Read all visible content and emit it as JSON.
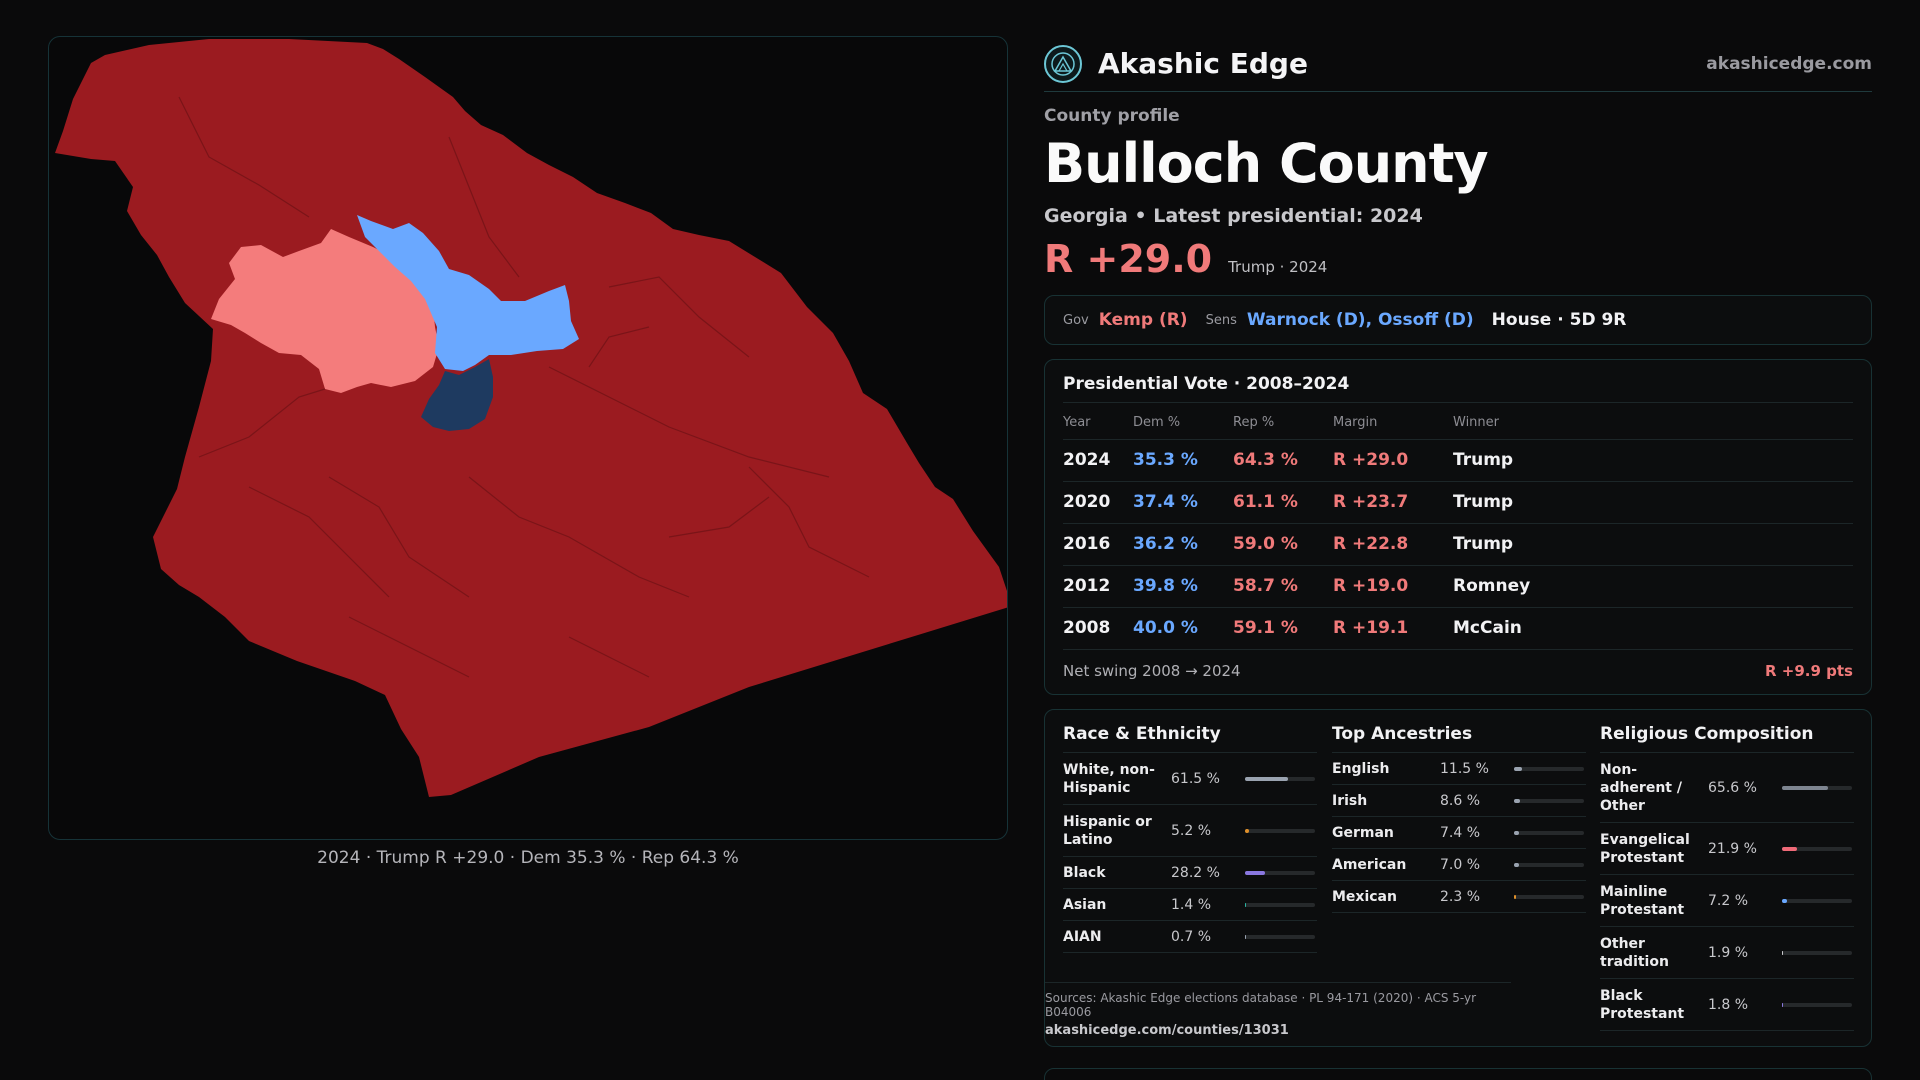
{
  "map": {
    "caption": "2024 · Trump R +29.0 · Dem 35.3 % · Rep 64.3 %",
    "colors": {
      "safe_r": "#9b1b20",
      "lean_r": "#f47c7c",
      "lean_d": "#6aa8ff",
      "safe_d": "#1e3a60"
    }
  },
  "brand": {
    "name": "Akashic Edge",
    "url": "akashicedge.com",
    "logo_icon": "mountain-compass-icon"
  },
  "profile": {
    "label": "County profile",
    "title": "Bulloch County",
    "subtitle": "Georgia • Latest presidential: 2024",
    "margin": "R +29.0",
    "margin_note": "Trump · 2024"
  },
  "officials": {
    "gov_label": "Gov",
    "gov_value": "Kemp (R)",
    "sens_label": "Sens",
    "sens_value": "Warnock (D), Ossoff (D)",
    "house_value": "House · 5D 9R"
  },
  "presidential": {
    "title": "Presidential Vote · 2008–2024",
    "headers": [
      "Year",
      "Dem %",
      "Rep %",
      "Margin",
      "Winner"
    ],
    "rows": [
      {
        "year": "2024",
        "dem": "35.3 %",
        "rep": "64.3 %",
        "margin": "R +29.0",
        "winner": "Trump"
      },
      {
        "year": "2020",
        "dem": "37.4 %",
        "rep": "61.1 %",
        "margin": "R +23.7",
        "winner": "Trump"
      },
      {
        "year": "2016",
        "dem": "36.2 %",
        "rep": "59.0 %",
        "margin": "R +22.8",
        "winner": "Trump"
      },
      {
        "year": "2012",
        "dem": "39.8 %",
        "rep": "58.7 %",
        "margin": "R +19.0",
        "winner": "Romney"
      },
      {
        "year": "2008",
        "dem": "40.0 %",
        "rep": "59.1 %",
        "margin": "R +19.1",
        "winner": "McCain"
      }
    ],
    "swing_label": "Net swing 2008 → 2024",
    "swing_value": "R +9.9 pts"
  },
  "race": {
    "title": "Race & Ethnicity",
    "rows": [
      {
        "name": "White, non-Hispanic",
        "pct": "61.5 %",
        "value": 61.5,
        "color": "#9aa3b0"
      },
      {
        "name": "Hispanic or Latino",
        "pct": "5.2 %",
        "value": 5.2,
        "color": "#e0902a"
      },
      {
        "name": "Black",
        "pct": "28.2 %",
        "value": 28.2,
        "color": "#8a78e0"
      },
      {
        "name": "Asian",
        "pct": "1.4 %",
        "value": 1.4,
        "color": "#2bb3a3"
      },
      {
        "name": "AIAN",
        "pct": "0.7 %",
        "value": 0.7,
        "color": "#9aa3b0"
      }
    ]
  },
  "ancestry": {
    "title": "Top Ancestries",
    "rows": [
      {
        "name": "English",
        "pct": "11.5 %",
        "value": 11.5,
        "color": "#9aa3b0"
      },
      {
        "name": "Irish",
        "pct": "8.6 %",
        "value": 8.6,
        "color": "#9aa3b0"
      },
      {
        "name": "German",
        "pct": "7.4 %",
        "value": 7.4,
        "color": "#9aa3b0"
      },
      {
        "name": "American",
        "pct": "7.0 %",
        "value": 7.0,
        "color": "#9aa3b0"
      },
      {
        "name": "Mexican",
        "pct": "2.3 %",
        "value": 2.3,
        "color": "#e0902a"
      }
    ]
  },
  "religion": {
    "title": "Religious Composition",
    "rows": [
      {
        "name": "Non-adherent / Other",
        "pct": "65.6 %",
        "value": 65.6,
        "color": "#7e8590"
      },
      {
        "name": "Evangelical Protestant",
        "pct": "21.9 %",
        "value": 21.9,
        "color": "#f06a78"
      },
      {
        "name": "Mainline Protestant",
        "pct": "7.2 %",
        "value": 7.2,
        "color": "#6aa8ff"
      },
      {
        "name": "Other tradition",
        "pct": "1.9 %",
        "value": 1.9,
        "color": "#c8c8cc"
      },
      {
        "name": "Black Protestant",
        "pct": "1.8 %",
        "value": 1.8,
        "color": "#8a78e0"
      }
    ]
  },
  "sources": {
    "text": "Sources: Akashic Edge elections database · PL 94-171 (2020) · ACS 5-yr B04006",
    "url": "akashicedge.com/counties/13031"
  }
}
